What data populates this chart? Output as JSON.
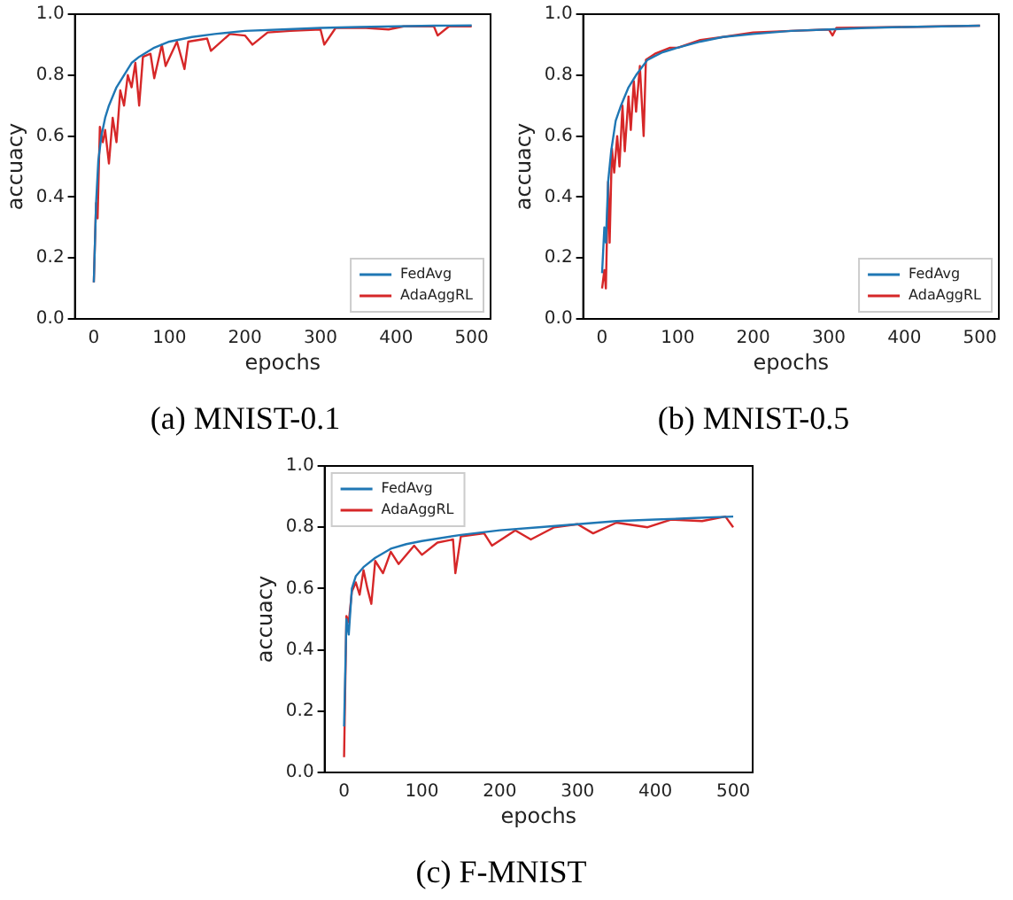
{
  "chart_data": [
    {
      "type": "line",
      "title": "(a) MNIST-0.1",
      "xlabel": "epochs",
      "ylabel": "accuacy",
      "xlim": [
        -25,
        525
      ],
      "ylim": [
        0,
        1
      ],
      "xticks": [
        0,
        100,
        200,
        300,
        400,
        500
      ],
      "yticks": [
        {
          "value": 0,
          "label": "0.0"
        },
        {
          "value": 0.2,
          "label": "0.2"
        },
        {
          "value": 0.4,
          "label": "0.4"
        },
        {
          "value": 0.6,
          "label": "0.6"
        },
        {
          "value": 0.8,
          "label": "0.8"
        },
        {
          "value": 1,
          "label": "1.0"
        }
      ],
      "grid": false,
      "legend": "bottom right",
      "marker": "none",
      "line_style": "solid",
      "series": [
        {
          "name": "FedAvg",
          "color": "#1f77b4",
          "x": [
            0,
            3,
            6,
            10,
            15,
            20,
            30,
            40,
            50,
            60,
            80,
            100,
            130,
            160,
            200,
            250,
            300,
            350,
            400,
            450,
            500
          ],
          "values": [
            0.12,
            0.38,
            0.52,
            0.6,
            0.66,
            0.7,
            0.76,
            0.8,
            0.84,
            0.86,
            0.89,
            0.91,
            0.925,
            0.935,
            0.945,
            0.95,
            0.955,
            0.958,
            0.96,
            0.962,
            0.963
          ]
        },
        {
          "name": "AdaAggRL",
          "color": "#d62728",
          "x": [
            0,
            3,
            5,
            8,
            12,
            15,
            20,
            25,
            30,
            35,
            40,
            45,
            50,
            55,
            60,
            65,
            75,
            80,
            90,
            95,
            110,
            120,
            125,
            150,
            155,
            180,
            200,
            210,
            230,
            260,
            300,
            305,
            320,
            360,
            390,
            410,
            450,
            455,
            470,
            500
          ],
          "values": [
            0.12,
            0.38,
            0.33,
            0.63,
            0.58,
            0.62,
            0.51,
            0.66,
            0.58,
            0.75,
            0.7,
            0.8,
            0.76,
            0.84,
            0.7,
            0.86,
            0.87,
            0.79,
            0.9,
            0.83,
            0.91,
            0.82,
            0.91,
            0.92,
            0.88,
            0.935,
            0.93,
            0.9,
            0.94,
            0.945,
            0.95,
            0.9,
            0.955,
            0.955,
            0.95,
            0.96,
            0.96,
            0.93,
            0.96,
            0.96
          ]
        }
      ]
    },
    {
      "type": "line",
      "title": "(b) MNIST-0.5",
      "xlabel": "epochs",
      "ylabel": "accuacy",
      "xlim": [
        -25,
        525
      ],
      "ylim": [
        0,
        1
      ],
      "xticks": [
        0,
        100,
        200,
        300,
        400,
        500
      ],
      "yticks": [
        {
          "value": 0,
          "label": "0.0"
        },
        {
          "value": 0.2,
          "label": "0.2"
        },
        {
          "value": 0.4,
          "label": "0.4"
        },
        {
          "value": 0.6,
          "label": "0.6"
        },
        {
          "value": 0.8,
          "label": "0.8"
        },
        {
          "value": 1,
          "label": "1.0"
        }
      ],
      "grid": false,
      "legend": "bottom right",
      "marker": "none",
      "line_style": "solid",
      "series": [
        {
          "name": "FedAvg",
          "color": "#1f77b4",
          "x": [
            0,
            3,
            5,
            8,
            12,
            18,
            25,
            35,
            45,
            60,
            80,
            100,
            130,
            160,
            200,
            250,
            300,
            350,
            400,
            500
          ],
          "values": [
            0.15,
            0.3,
            0.25,
            0.45,
            0.55,
            0.65,
            0.7,
            0.76,
            0.8,
            0.85,
            0.875,
            0.89,
            0.91,
            0.925,
            0.935,
            0.945,
            0.95,
            0.955,
            0.958,
            0.962
          ]
        },
        {
          "name": "AdaAggRL",
          "color": "#d62728",
          "x": [
            0,
            3,
            5,
            8,
            10,
            13,
            16,
            20,
            23,
            27,
            30,
            35,
            38,
            42,
            45,
            50,
            55,
            58,
            70,
            90,
            100,
            130,
            160,
            200,
            250,
            300,
            305,
            310,
            400,
            500
          ],
          "values": [
            0.1,
            0.16,
            0.1,
            0.45,
            0.25,
            0.56,
            0.48,
            0.6,
            0.5,
            0.7,
            0.55,
            0.73,
            0.62,
            0.78,
            0.68,
            0.83,
            0.6,
            0.85,
            0.87,
            0.89,
            0.89,
            0.915,
            0.925,
            0.94,
            0.945,
            0.95,
            0.93,
            0.955,
            0.958,
            0.962
          ]
        }
      ]
    },
    {
      "type": "line",
      "title": "(c) F-MNIST",
      "xlabel": "epochs",
      "ylabel": "accuacy",
      "xlim": [
        -25,
        525
      ],
      "ylim": [
        0,
        1
      ],
      "xticks": [
        0,
        100,
        200,
        300,
        400,
        500
      ],
      "yticks": [
        {
          "value": 0,
          "label": "0.0"
        },
        {
          "value": 0.2,
          "label": "0.2"
        },
        {
          "value": 0.4,
          "label": "0.4"
        },
        {
          "value": 0.6,
          "label": "0.6"
        },
        {
          "value": 0.8,
          "label": "0.8"
        },
        {
          "value": 1,
          "label": "1.0"
        }
      ],
      "grid": false,
      "legend": "top left",
      "marker": "none",
      "line_style": "solid",
      "series": [
        {
          "name": "FedAvg",
          "color": "#1f77b4",
          "x": [
            0,
            3,
            6,
            10,
            15,
            25,
            40,
            60,
            80,
            100,
            150,
            200,
            250,
            300,
            350,
            400,
            450,
            500
          ],
          "values": [
            0.15,
            0.5,
            0.45,
            0.6,
            0.64,
            0.67,
            0.7,
            0.73,
            0.745,
            0.755,
            0.775,
            0.79,
            0.8,
            0.81,
            0.82,
            0.825,
            0.83,
            0.835
          ]
        },
        {
          "name": "AdaAggRL",
          "color": "#d62728",
          "x": [
            0,
            3,
            6,
            10,
            15,
            20,
            25,
            30,
            35,
            40,
            50,
            60,
            70,
            90,
            100,
            120,
            140,
            143,
            150,
            180,
            190,
            220,
            240,
            270,
            300,
            320,
            350,
            390,
            420,
            460,
            490,
            500
          ],
          "values": [
            0.05,
            0.51,
            0.49,
            0.59,
            0.62,
            0.58,
            0.66,
            0.6,
            0.55,
            0.69,
            0.65,
            0.72,
            0.68,
            0.74,
            0.71,
            0.75,
            0.76,
            0.65,
            0.77,
            0.78,
            0.74,
            0.79,
            0.76,
            0.8,
            0.81,
            0.78,
            0.815,
            0.8,
            0.825,
            0.82,
            0.835,
            0.8
          ]
        }
      ]
    }
  ]
}
